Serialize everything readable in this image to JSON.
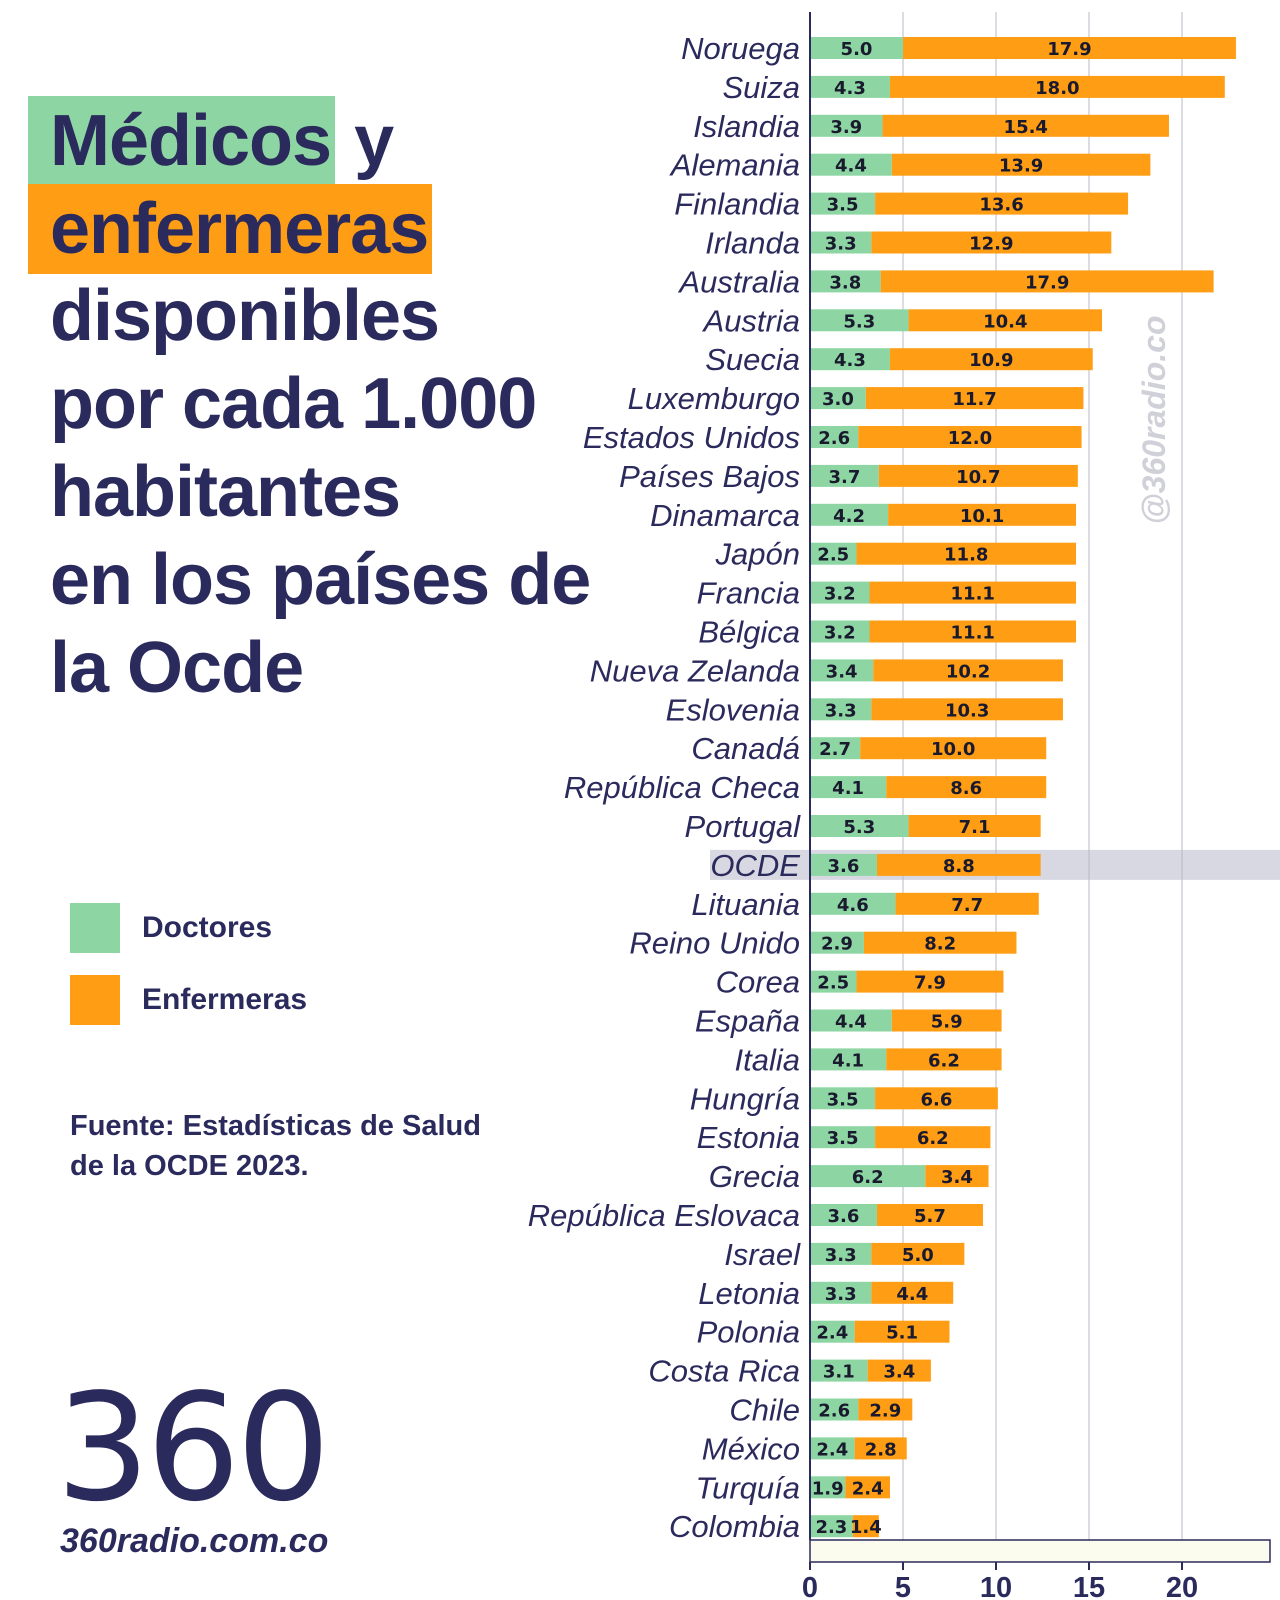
{
  "title": {
    "line1_highlight": "Médicos",
    "line1_rest": " y",
    "line2_highlight": "enfermeras",
    "line3": "disponibles",
    "line4": "por cada 1.000",
    "line5": "habitantes",
    "line6": "en los países de",
    "line7": "la Ocde"
  },
  "legend": {
    "doctors_label": "Doctores",
    "nurses_label": "Enfermeras"
  },
  "source": {
    "line1": "Fuente: Estadísticas de Salud",
    "line2": "de la OCDE 2023."
  },
  "logo": {
    "number": "360",
    "url": "360radio.com.co"
  },
  "watermark": "@360radio.co",
  "colors": {
    "doctors": "#8dd6a3",
    "nurses": "#ff9d14",
    "text": "#2b2a5c",
    "highlight_row": "#d8d8e2"
  },
  "chart_data": {
    "type": "bar",
    "orientation": "horizontal",
    "stacked": true,
    "title": "Médicos y enfermeras disponibles por cada 1.000 habitantes en los países de la Ocde",
    "xlim": [
      0,
      25
    ],
    "xticks": [
      0,
      5,
      10,
      15,
      20
    ],
    "highlight_category": "OCDE",
    "categories": [
      "Noruega",
      "Suiza",
      "Islandia",
      "Alemania",
      "Finlandia",
      "Irlanda",
      "Australia",
      "Austria",
      "Suecia",
      "Luxemburgo",
      "Estados Unidos",
      "Países Bajos",
      "Dinamarca",
      "Japón",
      "Francia",
      "Bélgica",
      "Nueva Zelanda",
      "Eslovenia",
      "Canadá",
      "República Checa",
      "Portugal",
      "OCDE",
      "Lituania",
      "Reino Unido",
      "Corea",
      "España",
      "Italia",
      "Hungría",
      "Estonia",
      "Grecia",
      "República Eslovaca",
      "Israel",
      "Letonia",
      "Polonia",
      "Costa Rica",
      "Chile",
      "México",
      "Turquía",
      "Colombia"
    ],
    "series": [
      {
        "name": "Doctores",
        "values": [
          5.0,
          4.3,
          3.9,
          4.4,
          3.5,
          3.3,
          3.8,
          5.3,
          4.3,
          3.0,
          2.6,
          3.7,
          4.2,
          2.5,
          3.2,
          3.2,
          3.4,
          3.3,
          2.7,
          4.1,
          5.3,
          3.6,
          4.6,
          2.9,
          2.5,
          4.4,
          4.1,
          3.5,
          3.5,
          6.2,
          3.6,
          3.3,
          3.3,
          2.4,
          3.1,
          2.6,
          2.4,
          1.9,
          2.3
        ]
      },
      {
        "name": "Enfermeras",
        "values": [
          17.9,
          18.0,
          15.4,
          13.9,
          13.6,
          12.9,
          17.9,
          10.4,
          10.9,
          11.7,
          12.0,
          10.7,
          10.1,
          11.8,
          11.1,
          11.1,
          10.2,
          10.3,
          10.0,
          8.6,
          7.1,
          8.8,
          7.7,
          8.2,
          7.9,
          5.9,
          6.2,
          6.6,
          6.2,
          3.4,
          5.7,
          5.0,
          4.4,
          5.1,
          3.4,
          2.9,
          2.8,
          2.4,
          1.4
        ]
      }
    ]
  }
}
